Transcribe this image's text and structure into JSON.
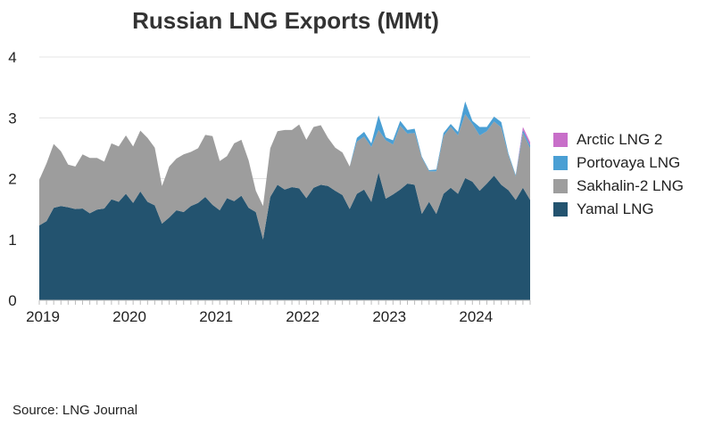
{
  "chart_data": {
    "type": "area",
    "stacked": true,
    "title": "Russian LNG Exports (MMt)",
    "xlabel": "",
    "ylabel": "",
    "ylim": [
      0,
      4
    ],
    "yticks": [
      0,
      1,
      2,
      3,
      4
    ],
    "x_start": "2019-01",
    "x_end": "2024-09",
    "x_tick_labels": [
      "2019",
      "2020",
      "2021",
      "2022",
      "2023",
      "2024"
    ],
    "grid": "horizontal",
    "legend_position": "right",
    "series": [
      {
        "name": "Yamal LNG",
        "color": "#23536f",
        "values": [
          1.23,
          1.3,
          1.52,
          1.55,
          1.53,
          1.5,
          1.51,
          1.43,
          1.49,
          1.51,
          1.66,
          1.62,
          1.75,
          1.6,
          1.79,
          1.62,
          1.56,
          1.26,
          1.36,
          1.48,
          1.45,
          1.55,
          1.6,
          1.7,
          1.57,
          1.48,
          1.68,
          1.63,
          1.72,
          1.52,
          1.45,
          1.0,
          1.7,
          1.9,
          1.82,
          1.86,
          1.84,
          1.68,
          1.85,
          1.9,
          1.88,
          1.8,
          1.73,
          1.5,
          1.75,
          1.82,
          1.62,
          2.1,
          1.67,
          1.74,
          1.82,
          1.92,
          1.9,
          1.42,
          1.62,
          1.42,
          1.75,
          1.85,
          1.75,
          2.01,
          1.95,
          1.8,
          1.92,
          2.05,
          1.9,
          1.81,
          1.65,
          1.85,
          1.65
        ]
      },
      {
        "name": "Sakhalin-2 LNG",
        "color": "#9d9d9d",
        "values": [
          0.75,
          0.95,
          1.05,
          0.9,
          0.7,
          0.7,
          0.89,
          0.91,
          0.85,
          0.77,
          0.92,
          0.91,
          0.96,
          0.93,
          1.0,
          1.05,
          0.95,
          0.62,
          0.84,
          0.85,
          0.95,
          0.89,
          0.9,
          1.02,
          1.13,
          0.81,
          0.69,
          0.95,
          0.92,
          0.78,
          0.35,
          0.55,
          0.8,
          0.88,
          0.98,
          0.94,
          1.05,
          0.96,
          1.0,
          0.98,
          0.79,
          0.71,
          0.7,
          0.7,
          0.86,
          0.87,
          0.9,
          0.7,
          0.96,
          0.82,
          1.05,
          0.82,
          0.85,
          0.92,
          0.5,
          0.7,
          0.95,
          1.0,
          0.96,
          1.05,
          0.95,
          0.91,
          0.86,
          0.89,
          0.94,
          0.57,
          0.39,
          0.9,
          0.85
        ]
      },
      {
        "name": "Portovaya LNG",
        "color": "#4a9fd4",
        "values": [
          0,
          0,
          0,
          0,
          0,
          0,
          0,
          0,
          0,
          0,
          0,
          0,
          0,
          0,
          0,
          0,
          0,
          0,
          0,
          0,
          0,
          0,
          0,
          0,
          0,
          0,
          0,
          0,
          0,
          0,
          0,
          0,
          0,
          0,
          0,
          0,
          0,
          0,
          0,
          0,
          0,
          0,
          0,
          0,
          0.06,
          0.08,
          0.06,
          0.24,
          0.05,
          0.07,
          0.08,
          0.06,
          0.07,
          0.02,
          0.02,
          0.03,
          0.05,
          0.05,
          0.06,
          0.21,
          0.05,
          0.14,
          0.07,
          0.08,
          0.09,
          0.03,
          0.02,
          0.05,
          0.05
        ]
      },
      {
        "name": "Arctic LNG 2",
        "color": "#c86fc9",
        "values": [
          0,
          0,
          0,
          0,
          0,
          0,
          0,
          0,
          0,
          0,
          0,
          0,
          0,
          0,
          0,
          0,
          0,
          0,
          0,
          0,
          0,
          0,
          0,
          0,
          0,
          0,
          0,
          0,
          0,
          0,
          0,
          0,
          0,
          0,
          0,
          0,
          0,
          0,
          0,
          0,
          0,
          0,
          0,
          0,
          0,
          0,
          0,
          0,
          0,
          0,
          0,
          0,
          0,
          0,
          0,
          0,
          0,
          0,
          0,
          0,
          0,
          0,
          0,
          0,
          0,
          0,
          0,
          0.05,
          0.05
        ]
      }
    ]
  },
  "legend": {
    "items": [
      {
        "label": "Arctic LNG 2",
        "color": "#c86fc9"
      },
      {
        "label": "Portovaya LNG",
        "color": "#4a9fd4"
      },
      {
        "label": "Sakhalin-2 LNG",
        "color": "#9d9d9d"
      },
      {
        "label": "Yamal LNG",
        "color": "#23536f"
      }
    ]
  },
  "source": "Source: LNG Journal"
}
